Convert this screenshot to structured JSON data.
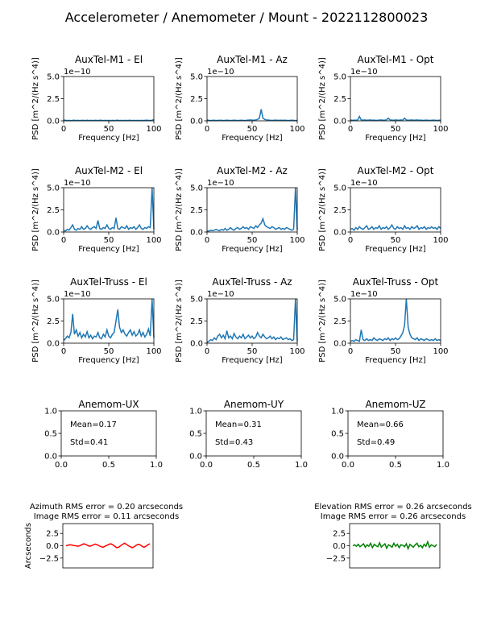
{
  "figure": {
    "title": "Accelerometer / Anemometer / Mount - 2022112800023"
  },
  "colors": {
    "psd": "#1f77b4",
    "azimuth": "#ff0000",
    "elevation": "#008000",
    "axis": "#000000"
  },
  "chart_data": [
    {
      "type": "line",
      "title": "AuxTel-M1 - El",
      "xlabel": "Frequency [Hz]",
      "ylabel": "PSD [m^2/(Hz s^4)]",
      "xlim": [
        0,
        100
      ],
      "ylim": [
        0,
        5
      ],
      "offset_label": "1e−10",
      "xticks": [
        0,
        50,
        100
      ],
      "yticks": [
        0.0,
        2.5,
        5.0
      ],
      "x_step": 2,
      "y": [
        0.1,
        0.05,
        0.04,
        0.05,
        0.03,
        0.05,
        0.06,
        0.04,
        0.05,
        0.04,
        0.05,
        0.05,
        0.04,
        0.06,
        0.04,
        0.05,
        0.04,
        0.05,
        0.05,
        0.04,
        0.06,
        0.05,
        0.04,
        0.05,
        0.04,
        0.05,
        0.04,
        0.05,
        0.04,
        0.05,
        0.06,
        0.04,
        0.05,
        0.04,
        0.05,
        0.04,
        0.05,
        0.05,
        0.04,
        0.05,
        0.04,
        0.05,
        0.04,
        0.05,
        0.04,
        0.05,
        0.06,
        0.05,
        0.04,
        0.06,
        0.15
      ]
    },
    {
      "type": "line",
      "title": "AuxTel-M1 - Az",
      "xlabel": "Frequency [Hz]",
      "ylabel": "PSD [m^2/(Hz s^4)]",
      "xlim": [
        0,
        100
      ],
      "ylim": [
        0,
        5
      ],
      "offset_label": "1e−10",
      "xticks": [
        0,
        50,
        100
      ],
      "yticks": [
        0.0,
        2.5,
        5.0
      ],
      "x_step": 2,
      "y": [
        0.1,
        0.05,
        0.04,
        0.05,
        0.06,
        0.04,
        0.05,
        0.05,
        0.06,
        0.04,
        0.05,
        0.06,
        0.05,
        0.04,
        0.05,
        0.06,
        0.05,
        0.04,
        0.05,
        0.06,
        0.05,
        0.04,
        0.06,
        0.08,
        0.1,
        0.08,
        0.06,
        0.1,
        0.15,
        0.3,
        1.3,
        0.3,
        0.15,
        0.1,
        0.08,
        0.06,
        0.05,
        0.06,
        0.08,
        0.06,
        0.05,
        0.06,
        0.05,
        0.06,
        0.05,
        0.04,
        0.05,
        0.06,
        0.05,
        0.04,
        0.05
      ]
    },
    {
      "type": "line",
      "title": "AuxTel-M1 - Opt",
      "xlabel": "Frequency [Hz]",
      "ylabel": "PSD [m^2/(Hz s^4)]",
      "xlim": [
        0,
        100
      ],
      "ylim": [
        0,
        5
      ],
      "offset_label": "1e−10",
      "xticks": [
        0,
        50,
        100
      ],
      "yticks": [
        0.0,
        2.5,
        5.0
      ],
      "x_step": 2,
      "y": [
        0.1,
        0.05,
        0.08,
        0.06,
        0.1,
        0.5,
        0.1,
        0.08,
        0.1,
        0.06,
        0.08,
        0.1,
        0.06,
        0.08,
        0.05,
        0.06,
        0.08,
        0.1,
        0.06,
        0.08,
        0.1,
        0.3,
        0.1,
        0.08,
        0.06,
        0.1,
        0.08,
        0.06,
        0.1,
        0.08,
        0.3,
        0.1,
        0.06,
        0.08,
        0.1,
        0.06,
        0.08,
        0.1,
        0.06,
        0.08,
        0.05,
        0.06,
        0.08,
        0.06,
        0.05,
        0.06,
        0.08,
        0.06,
        0.05,
        0.06,
        0.08
      ]
    },
    {
      "type": "line",
      "title": "AuxTel-M2 - El",
      "xlabel": "Frequency [Hz]",
      "ylabel": "PSD [m^2/(Hz s^4)]",
      "xlim": [
        0,
        100
      ],
      "ylim": [
        0,
        5
      ],
      "offset_label": "1e−10",
      "xticks": [
        0,
        50,
        100
      ],
      "yticks": [
        0.0,
        2.5,
        5.0
      ],
      "x_step": 2,
      "y": [
        0.2,
        0.1,
        0.3,
        0.2,
        0.5,
        0.8,
        0.3,
        0.2,
        0.4,
        0.3,
        0.6,
        0.3,
        0.4,
        0.7,
        0.4,
        0.3,
        0.5,
        0.6,
        0.4,
        1.3,
        0.4,
        0.3,
        0.5,
        0.4,
        0.8,
        0.4,
        0.3,
        0.5,
        0.4,
        1.6,
        0.4,
        0.3,
        0.6,
        0.5,
        0.4,
        0.7,
        0.3,
        0.5,
        0.4,
        0.6,
        0.3,
        0.5,
        0.8,
        0.4,
        0.3,
        0.5,
        0.4,
        0.6,
        0.5,
        5.0,
        0.3
      ]
    },
    {
      "type": "line",
      "title": "AuxTel-M2 - Az",
      "xlabel": "Frequency [Hz]",
      "ylabel": "PSD [m^2/(Hz s^4)]",
      "xlim": [
        0,
        100
      ],
      "ylim": [
        0,
        5
      ],
      "offset_label": "1e−10",
      "xticks": [
        0,
        50,
        100
      ],
      "yticks": [
        0.0,
        2.5,
        5.0
      ],
      "x_step": 2,
      "y": [
        0.1,
        0.1,
        0.2,
        0.15,
        0.2,
        0.3,
        0.2,
        0.15,
        0.3,
        0.2,
        0.4,
        0.2,
        0.3,
        0.5,
        0.3,
        0.2,
        0.4,
        0.5,
        0.3,
        0.4,
        0.6,
        0.4,
        0.5,
        0.3,
        0.6,
        0.5,
        0.4,
        0.7,
        0.5,
        0.8,
        1.0,
        1.5,
        0.8,
        0.6,
        0.5,
        0.4,
        0.6,
        0.5,
        0.3,
        0.4,
        0.5,
        0.3,
        0.4,
        0.3,
        0.5,
        0.4,
        0.3,
        0.2,
        0.3,
        5.0,
        0.2
      ]
    },
    {
      "type": "line",
      "title": "AuxTel-M2 - Opt",
      "xlabel": "Frequency [Hz]",
      "ylabel": "PSD [m^2/(Hz s^4)]",
      "xlim": [
        0,
        100
      ],
      "ylim": [
        0,
        5
      ],
      "offset_label": "1e−10",
      "xticks": [
        0,
        50,
        100
      ],
      "yticks": [
        0.0,
        2.5,
        5.0
      ],
      "x_step": 2,
      "y": [
        0.3,
        0.4,
        0.2,
        0.5,
        0.3,
        0.6,
        0.4,
        0.3,
        0.5,
        0.7,
        0.3,
        0.4,
        0.6,
        0.3,
        0.5,
        0.4,
        0.7,
        0.3,
        0.5,
        0.4,
        0.6,
        0.3,
        0.5,
        0.8,
        0.4,
        0.3,
        0.6,
        0.4,
        0.5,
        0.3,
        0.7,
        0.4,
        0.5,
        0.3,
        0.6,
        0.4,
        0.5,
        0.7,
        0.3,
        0.5,
        0.4,
        0.6,
        0.3,
        0.5,
        0.4,
        0.6,
        0.4,
        0.5,
        0.3,
        0.6,
        0.4
      ]
    },
    {
      "type": "line",
      "title": "AuxTel-Truss - El",
      "xlabel": "Frequency [Hz]",
      "ylabel": "PSD [m^2/(Hz s^4)]",
      "xlim": [
        0,
        100
      ],
      "ylim": [
        0,
        5
      ],
      "offset_label": "1e−10",
      "xticks": [
        0,
        50,
        100
      ],
      "yticks": [
        0.0,
        2.5,
        5.0
      ],
      "x_step": 2,
      "y": [
        0.3,
        0.5,
        0.8,
        0.6,
        1.2,
        3.3,
        1.0,
        1.5,
        0.8,
        1.2,
        0.6,
        1.0,
        0.7,
        1.3,
        0.6,
        0.9,
        0.5,
        0.8,
        0.7,
        1.2,
        0.6,
        0.5,
        1.0,
        0.7,
        1.5,
        0.8,
        0.6,
        1.0,
        1.2,
        2.5,
        3.8,
        1.8,
        1.2,
        1.5,
        1.0,
        0.8,
        1.2,
        1.5,
        0.9,
        1.3,
        0.8,
        1.0,
        1.5,
        0.8,
        1.2,
        0.7,
        1.0,
        1.6,
        0.8,
        5.0,
        0.6
      ]
    },
    {
      "type": "line",
      "title": "AuxTel-Truss - Az",
      "xlabel": "Frequency [Hz]",
      "ylabel": "PSD [m^2/(Hz s^4)]",
      "xlim": [
        0,
        100
      ],
      "ylim": [
        0,
        5
      ],
      "offset_label": "1e−10",
      "xticks": [
        0,
        50,
        100
      ],
      "yticks": [
        0.0,
        2.5,
        5.0
      ],
      "x_step": 2,
      "y": [
        0.1,
        0.2,
        0.4,
        0.3,
        0.6,
        0.4,
        0.8,
        1.0,
        0.6,
        0.9,
        0.5,
        1.4,
        0.6,
        0.8,
        0.5,
        1.1,
        0.7,
        0.5,
        0.8,
        0.6,
        1.0,
        0.5,
        0.7,
        0.9,
        0.6,
        0.8,
        0.5,
        0.7,
        1.2,
        0.8,
        0.6,
        1.0,
        0.7,
        0.5,
        0.6,
        0.8,
        0.5,
        0.7,
        0.4,
        0.6,
        0.5,
        0.7,
        0.4,
        0.5,
        0.6,
        0.4,
        0.5,
        0.3,
        0.4,
        5.0,
        0.2
      ]
    },
    {
      "type": "line",
      "title": "AuxTel-Truss - Opt",
      "xlabel": "Frequency [Hz]",
      "ylabel": "PSD [m^2/(Hz s^4)]",
      "xlim": [
        0,
        100
      ],
      "ylim": [
        0,
        5
      ],
      "offset_label": "1e−10",
      "xticks": [
        0,
        50,
        100
      ],
      "yticks": [
        0.0,
        2.5,
        5.0
      ],
      "x_step": 2,
      "y": [
        0.2,
        0.3,
        0.2,
        0.4,
        0.3,
        0.2,
        1.5,
        0.4,
        0.3,
        0.5,
        0.3,
        0.4,
        0.3,
        0.6,
        0.4,
        0.3,
        0.5,
        0.4,
        0.3,
        0.5,
        0.4,
        0.6,
        0.3,
        0.5,
        0.4,
        0.6,
        0.4,
        0.5,
        0.8,
        1.2,
        2.0,
        5.0,
        1.8,
        1.0,
        0.6,
        0.5,
        0.4,
        0.6,
        0.3,
        0.5,
        0.4,
        0.3,
        0.5,
        0.4,
        0.3,
        0.4,
        0.3,
        0.5,
        0.3,
        0.4,
        0.3
      ]
    },
    {
      "type": "table",
      "title": "Anemom-UX",
      "mean_label": "Mean=0.17",
      "std_label": "Std=0.41",
      "xlim": [
        0,
        1
      ],
      "ylim": [
        0,
        1
      ],
      "xticks": [
        0.0,
        0.5,
        1.0
      ],
      "yticks": [
        0.0,
        0.5,
        1.0
      ]
    },
    {
      "type": "table",
      "title": "Anemom-UY",
      "mean_label": "Mean=0.31",
      "std_label": "Std=0.43",
      "xlim": [
        0,
        1
      ],
      "ylim": [
        0,
        1
      ],
      "xticks": [
        0.0,
        0.5,
        1.0
      ],
      "yticks": [
        0.0,
        0.5,
        1.0
      ]
    },
    {
      "type": "table",
      "title": "Anemom-UZ",
      "mean_label": "Mean=0.66",
      "std_label": "Std=0.49",
      "xlim": [
        0,
        1
      ],
      "ylim": [
        0,
        1
      ],
      "xticks": [
        0.0,
        0.5,
        1.0
      ],
      "yticks": [
        0.0,
        0.5,
        1.0
      ]
    },
    {
      "type": "line",
      "title": "Azimuth RMS error = 0.20 arcseconds",
      "subtitle": "Image RMS error = 0.11 arcseconds",
      "ylabel": "Arcseconds",
      "ylim": [
        -4.5,
        4.5
      ],
      "yticks": [
        2.5,
        0.0,
        -2.5
      ],
      "yticklabels": [
        "2.5",
        "0.0",
        "−2.5"
      ],
      "y": [
        0.0,
        0.1,
        0.2,
        0.15,
        0.05,
        0.0,
        -0.1,
        0.0,
        0.2,
        0.4,
        0.3,
        0.1,
        -0.1,
        0.0,
        0.2,
        0.35,
        0.2,
        0.0,
        -0.2,
        -0.3,
        -0.1,
        0.1,
        0.3,
        0.4,
        0.2,
        -0.1,
        -0.4,
        -0.3,
        0.0,
        0.3,
        0.5,
        0.3,
        0.0,
        -0.2,
        -0.4,
        -0.2,
        0.1,
        0.3,
        0.2,
        -0.1,
        -0.3,
        -0.1,
        0.2,
        0.4
      ]
    },
    {
      "type": "line",
      "title": "Elevation RMS error = 0.26 arcseconds",
      "subtitle": "Image RMS error = 0.26 arcseconds",
      "ylabel": "",
      "ylim": [
        -4.5,
        4.5
      ],
      "yticks": [
        2.5,
        0.0,
        -2.5
      ],
      "yticklabels": [
        "2.5",
        "0.0",
        "−2.5"
      ],
      "y": [
        0.0,
        0.2,
        -0.1,
        0.3,
        -0.2,
        0.1,
        0.4,
        -0.3,
        0.2,
        -0.1,
        0.5,
        -0.4,
        0.3,
        0.0,
        -0.2,
        0.6,
        -0.3,
        0.1,
        0.4,
        -0.5,
        0.2,
        0.0,
        -0.3,
        0.5,
        -0.1,
        0.3,
        -0.4,
        0.2,
        0.1,
        -0.2,
        0.4,
        -0.6,
        0.3,
        0.0,
        -0.3,
        0.2,
        0.5,
        -0.2,
        0.1,
        -0.4,
        0.3,
        -0.1,
        0.8,
        -0.3,
        0.2,
        0.0,
        -0.2,
        0.3
      ]
    }
  ]
}
